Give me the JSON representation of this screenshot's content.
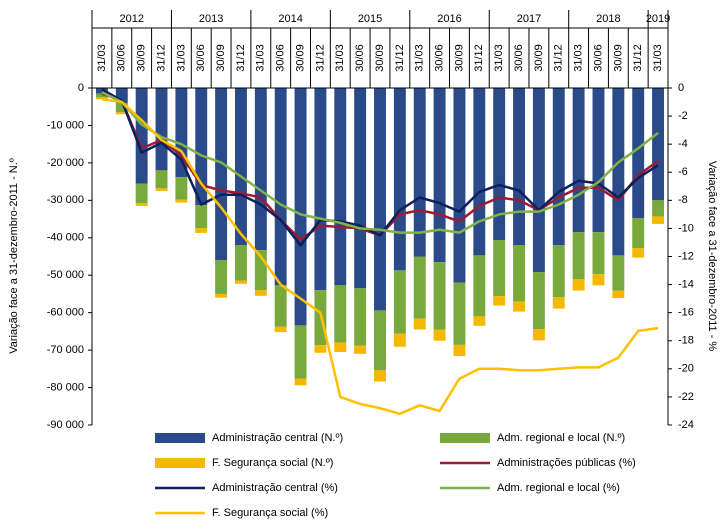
{
  "chart_data": {
    "type": "bar",
    "stacked": true,
    "y_title": "Variação face a 31-dezembro-2011 - N.º",
    "y2_title": "Variação face a 31-dezembro-2011 - %",
    "year_groups": [
      "2012",
      "2013",
      "2014",
      "2015",
      "2016",
      "2017",
      "2018",
      "2019"
    ],
    "categories": [
      "31/03",
      "30/06",
      "30/09",
      "31/12",
      "31/03",
      "30/06",
      "30/09",
      "31/12",
      "31/03",
      "30/06",
      "30/09",
      "31/12",
      "31/03",
      "30/06",
      "30/09",
      "31/12",
      "31/03",
      "30/06",
      "30/09",
      "31/12",
      "31/03",
      "30/06",
      "30/09",
      "31/12",
      "31/03",
      "30/06",
      "30/09",
      "31/12",
      "31/03"
    ],
    "ylim": [
      -90000,
      0
    ],
    "yticks": [
      {
        "value": -90000,
        "label": "-90 000"
      },
      {
        "value": -80000,
        "label": "-80 000"
      },
      {
        "value": -70000,
        "label": "-70 000"
      },
      {
        "value": -60000,
        "label": "-60 000"
      },
      {
        "value": -50000,
        "label": "-50 000"
      },
      {
        "value": -40000,
        "label": "-40 000"
      },
      {
        "value": -30000,
        "label": "-30 000"
      },
      {
        "value": -20000,
        "label": "-20 000"
      },
      {
        "value": -10000,
        "label": "-10 000"
      },
      0
    ],
    "y2lim": [
      -24,
      0
    ],
    "y2ticks": [
      -24,
      -22,
      -20,
      -18,
      -16,
      -14,
      -12,
      -10,
      -8,
      -6,
      -4,
      -2,
      0
    ],
    "series": [
      {
        "name": "Administração central (N.º)",
        "type": "bar",
        "color": "#2b4a8a",
        "values": [
          -1500,
          -4000,
          -25500,
          -22000,
          -23800,
          -31300,
          -46000,
          -42000,
          -43300,
          -52700,
          -63400,
          -54000,
          -52700,
          -53500,
          -59400,
          -48700,
          -45000,
          -46500,
          -52000,
          -44700,
          -40600,
          -42000,
          -49200,
          -42000,
          -38500,
          -38500,
          -44700,
          -34800,
          -30000
        ]
      },
      {
        "name": "Adm. regional e local (N.º)",
        "type": "bar",
        "color": "#79a83c",
        "values": [
          -1000,
          -2500,
          -5200,
          -4800,
          -6000,
          -6100,
          -9000,
          -9400,
          -10700,
          -11000,
          -14200,
          -14700,
          -15300,
          -15300,
          -16000,
          -16900,
          -16600,
          -18000,
          -16600,
          -16300,
          -15000,
          -15000,
          -15200,
          -13900,
          -12600,
          -11200,
          -9400,
          -8000,
          -4300
        ]
      },
      {
        "name": "F. Segurança social  (N.º)",
        "type": "bar",
        "color": "#f5b800",
        "values": [
          -500,
          -500,
          -800,
          -700,
          -800,
          -1300,
          -1000,
          -900,
          -1500,
          -1500,
          -1800,
          -2000,
          -2500,
          -2200,
          -3000,
          -3500,
          -2900,
          -3000,
          -3000,
          -2500,
          -2500,
          -2700,
          -3000,
          -3000,
          -3000,
          -3000,
          -2000,
          -2500,
          -2000
        ]
      },
      {
        "name": "Administrações públicas (%)",
        "type": "line",
        "axis": "y2",
        "color": "#9b1c32",
        "values": [
          -0.4,
          -0.9,
          -4.3,
          -3.7,
          -4.8,
          -6.9,
          -7.3,
          -7.5,
          -7.8,
          -9.4,
          -10.8,
          -9.8,
          -9.9,
          -10.0,
          -10.5,
          -9.0,
          -8.7,
          -9.0,
          -9.5,
          -8.4,
          -7.8,
          -8.0,
          -8.7,
          -7.8,
          -7.1,
          -7.1,
          -8.0,
          -6.2,
          -5.2
        ]
      },
      {
        "name": "Administração central  (%)",
        "type": "line",
        "axis": "y2",
        "color": "#0d1f5c",
        "values": [
          -0.1,
          -0.9,
          -4.6,
          -3.9,
          -5.1,
          -8.3,
          -7.6,
          -7.6,
          -8.3,
          -9.4,
          -11.2,
          -9.4,
          -9.5,
          -9.8,
          -10.5,
          -8.7,
          -7.8,
          -8.2,
          -8.8,
          -7.4,
          -6.9,
          -7.3,
          -8.7,
          -7.4,
          -6.6,
          -6.8,
          -7.8,
          -6.4,
          -5.5
        ]
      },
      {
        "name": "Adm. regional e local (%)",
        "type": "line",
        "axis": "y2",
        "color": "#7fb347",
        "values": [
          -0.3,
          -1.0,
          -2.6,
          -3.5,
          -4.0,
          -4.8,
          -5.3,
          -6.3,
          -7.3,
          -8.3,
          -9.0,
          -9.3,
          -9.6,
          -10.0,
          -10.1,
          -10.3,
          -10.3,
          -10.1,
          -10.3,
          -9.5,
          -9.0,
          -8.8,
          -8.8,
          -8.3,
          -7.6,
          -6.7,
          -5.3,
          -4.3,
          -3.2
        ]
      },
      {
        "name": "F. Segurança social  (%)",
        "type": "line",
        "axis": "y2",
        "color": "#ffc000",
        "values": [
          -0.8,
          -1.0,
          -2.3,
          -3.7,
          -4.5,
          -6.8,
          -8.5,
          -10.4,
          -12.0,
          -14.0,
          -15.0,
          -16.0,
          -22.0,
          -22.5,
          -22.8,
          -23.2,
          -22.6,
          -23.0,
          -20.7,
          -20.0,
          -20.0,
          -20.1,
          -20.1,
          -20.0,
          -19.9,
          -19.9,
          -19.2,
          -17.3,
          -17.1
        ]
      }
    ]
  }
}
